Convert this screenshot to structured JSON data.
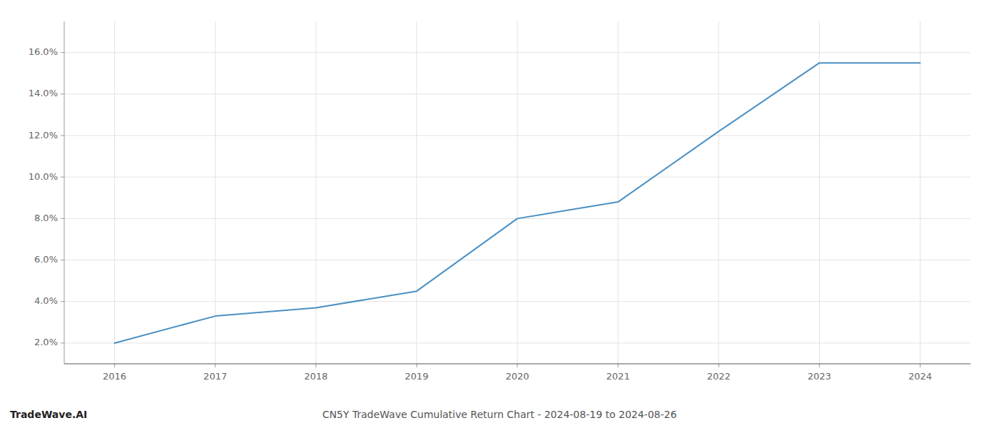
{
  "chart_data": {
    "type": "line",
    "title": "CN5Y TradeWave Cumulative Return Chart - 2024-08-19 to 2024-08-26",
    "annotations": [
      "TradeWave.AI"
    ],
    "x": [
      2016,
      2017,
      2018,
      2019,
      2020,
      2021,
      2022,
      2023,
      2024
    ],
    "values": [
      0.02,
      0.033,
      0.037,
      0.045,
      0.08,
      0.088,
      0.122,
      0.155,
      0.155
    ],
    "color": "#4a90c4",
    "xlim": [
      2015.5,
      2024.5
    ],
    "xticks": [
      2016,
      2017,
      2018,
      2019,
      2020,
      2021,
      2022,
      2023,
      2024
    ],
    "ylim": [
      0.01,
      0.175
    ],
    "yticks": [
      {
        "value": 0.02,
        "label": "2.0%"
      },
      {
        "value": 0.04,
        "label": "4.0%"
      },
      {
        "value": 0.06,
        "label": "6.0%"
      },
      {
        "value": 0.08,
        "label": "8.0%"
      },
      {
        "value": 0.1,
        "label": "10.0%"
      },
      {
        "value": 0.12,
        "label": "12.0%"
      },
      {
        "value": 0.14,
        "label": "14.0%"
      },
      {
        "value": 0.16,
        "label": "16.0%"
      }
    ],
    "grid": true
  }
}
